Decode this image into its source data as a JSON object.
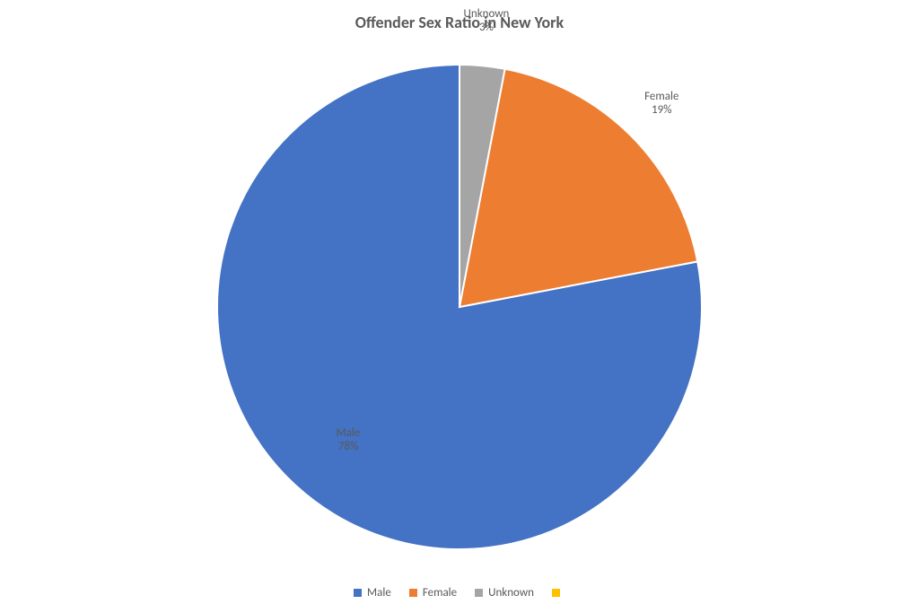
{
  "chart": {
    "type": "pie",
    "title": "Offender Sex Ratio in New York",
    "title_fontsize": 18,
    "title_color": "#595959",
    "title_weight": "bold",
    "background_color": "#ffffff",
    "label_fontsize": 13,
    "label_color": "#595959",
    "legend_fontsize": 13,
    "legend_color": "#595959",
    "pie_radius": 270,
    "slice_border_color": "#ffffff",
    "slice_border_width": 2,
    "start_angle_deg": 0,
    "direction": "ccw",
    "series": [
      {
        "name": "Male",
        "value": 78,
        "label": "Male",
        "pct_text": "78%",
        "color": "#4472c4",
        "show_label": true,
        "label_offset": 0.72
      },
      {
        "name": "Female",
        "value": 19,
        "label": "Female",
        "pct_text": "19%",
        "color": "#ed7d31",
        "show_label": true,
        "label_offset": 1.18
      },
      {
        "name": "Unknown",
        "value": 3,
        "label": "Unknown",
        "pct_text": "3%",
        "color": "#a5a5a5",
        "show_label": true,
        "label_offset": 1.18
      },
      {
        "name": "",
        "value": 0,
        "label": "",
        "pct_text": "",
        "color": "#ffc000",
        "show_label": false,
        "label_offset": 1.0
      }
    ]
  }
}
